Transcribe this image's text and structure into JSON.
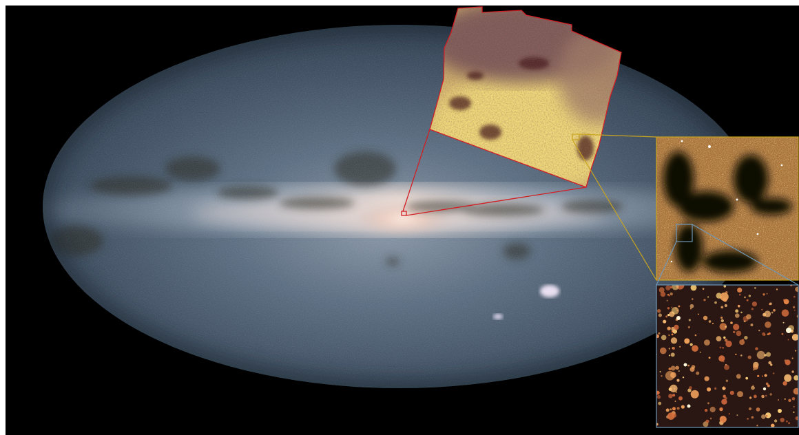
{
  "scene": {
    "subject": "milky-way-all-sky-map",
    "panels": [
      {
        "name": "all-sky-map",
        "colors": {
          "background": "#000000",
          "sky_edge": "#2a3644",
          "sky_mid": "#56697c",
          "galactic_core": "#f4dcd0",
          "dust_lane": "#2a2a22"
        }
      },
      {
        "name": "zoom-level-1",
        "colors": {
          "border": "#d21e24",
          "glow": "#e6d070",
          "dust": "#4a1e1c"
        }
      },
      {
        "name": "zoom-level-2",
        "colors": {
          "border": "#c9a41e",
          "stars": "#d9a060"
        }
      },
      {
        "name": "zoom-level-3",
        "colors": {
          "border": "#6f98b8",
          "stars": "#e89a58"
        }
      }
    ]
  }
}
